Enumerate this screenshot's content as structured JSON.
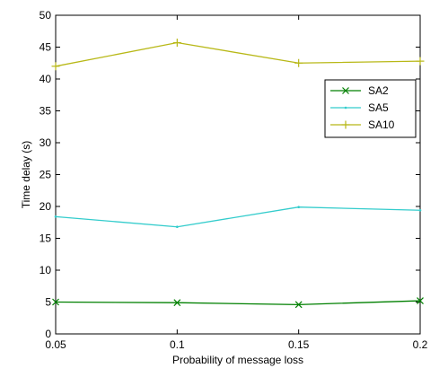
{
  "chart_data": {
    "type": "line",
    "title": "",
    "xlabel": "Probability of message loss",
    "ylabel": "Time delay (s)",
    "xlim": [
      0.05,
      0.2
    ],
    "ylim": [
      0,
      50
    ],
    "x": [
      0.05,
      0.1,
      0.15,
      0.2
    ],
    "x_tick_labels": [
      "0.05",
      "0.1",
      "0.15",
      "0.2"
    ],
    "y_tick_values": [
      0,
      5,
      10,
      15,
      20,
      25,
      30,
      35,
      40,
      45,
      50
    ],
    "y_tick_labels": [
      "0",
      "5",
      "10",
      "15",
      "20",
      "25",
      "30",
      "35",
      "40",
      "45",
      "50"
    ],
    "grid": false,
    "legend_position": "top-right",
    "series": [
      {
        "name": "SA2",
        "color": "#008000",
        "marker": "x",
        "values": [
          5.0,
          4.9,
          4.6,
          5.2
        ]
      },
      {
        "name": "SA5",
        "color": "#33cccc",
        "marker": "point",
        "values": [
          18.4,
          16.8,
          19.9,
          19.4
        ]
      },
      {
        "name": "SA10",
        "color": "#b8b817",
        "marker": "plus",
        "values": [
          42.0,
          45.7,
          42.5,
          42.8
        ]
      }
    ]
  }
}
